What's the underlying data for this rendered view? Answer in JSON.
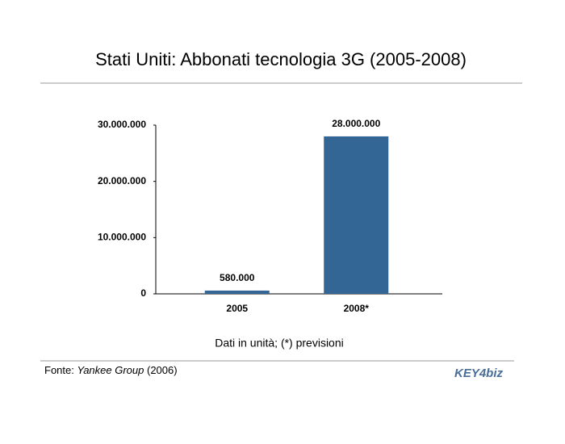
{
  "chart_data": {
    "type": "bar",
    "title": "Stati Uniti: Abbonati tecnologia 3G (2005-2008)",
    "categories": [
      "2005",
      "2008*"
    ],
    "values": [
      580000,
      28000000
    ],
    "value_labels": [
      "580.000",
      "28.000.000"
    ],
    "color": "#336595",
    "ylim": [
      0,
      30000000
    ],
    "yticks": [
      0,
      {
        "value": 10000000,
        "label": "10.000.000"
      },
      {
        "value": 20000000,
        "label": "20.000.000"
      },
      {
        "value": 30000000,
        "label": "30.000.000"
      }
    ],
    "grid": false,
    "note": "Dati in unità; (*) previsioni",
    "source_prefix": "Fonte:",
    "source_name": "Yankee Group",
    "source_year": "(2006)",
    "logo": "KEY4biz"
  }
}
